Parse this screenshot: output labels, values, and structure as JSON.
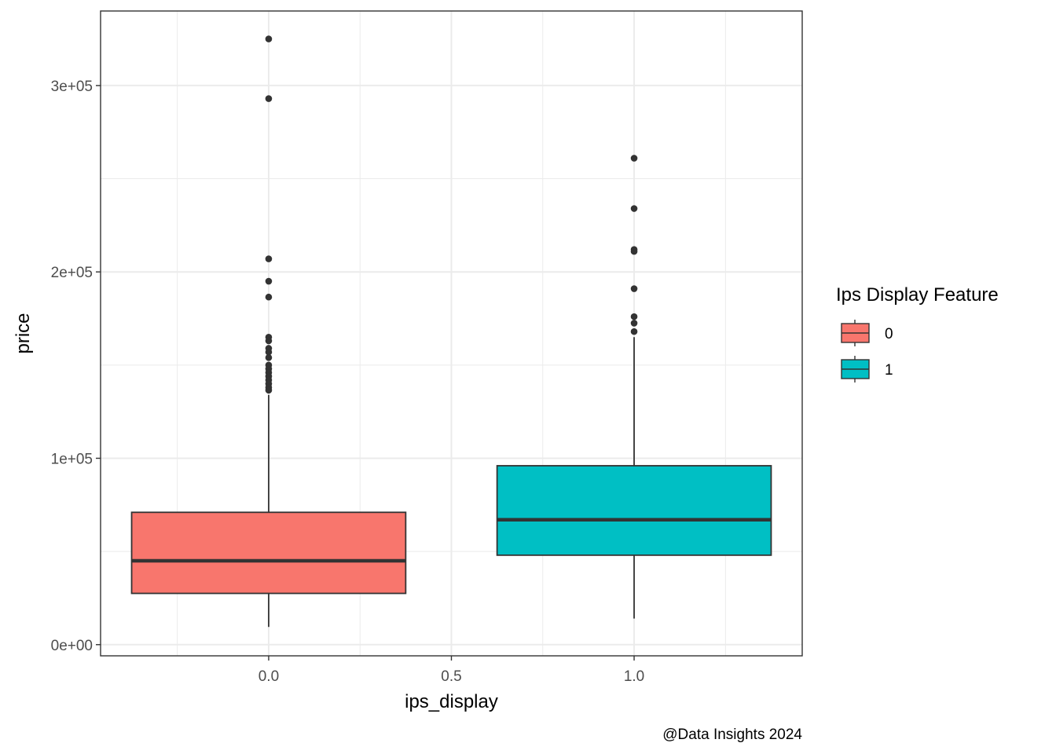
{
  "chart_data": {
    "type": "boxplot",
    "xlabel": "ips_display",
    "ylabel": "price",
    "caption": "@Data Insights 2024",
    "xlim": [
      -0.46,
      1.46
    ],
    "ylim": [
      -6000,
      340000
    ],
    "x_ticks": [
      0,
      0.5,
      1
    ],
    "x_tick_labels": [
      "0.0",
      "0.5",
      "1.0"
    ],
    "y_ticks": [
      0,
      100000,
      200000,
      300000
    ],
    "y_tick_labels": [
      "0e+00",
      "1e+05",
      "2e+05",
      "3e+05"
    ],
    "grid": true,
    "legend": {
      "title": "Ips Display Feature",
      "position": "right",
      "entries": [
        {
          "label": "0",
          "color": "#F8766D"
        },
        {
          "label": "1",
          "color": "#00BFC4"
        }
      ]
    },
    "boxes": [
      {
        "group": "0",
        "x": 0,
        "color": "#F8766D",
        "whisker_low": 9500,
        "q1": 27500,
        "median": 45000,
        "q3": 71000,
        "whisker_high": 134000,
        "outliers": [
          325000,
          293000,
          207000,
          195000,
          186500,
          165000,
          163000,
          159000,
          157000,
          154000,
          150000,
          148000,
          146000,
          144000,
          142000,
          140000,
          138000,
          136500
        ]
      },
      {
        "group": "1",
        "x": 1,
        "color": "#00BFC4",
        "whisker_low": 14000,
        "q1": 48000,
        "median": 67000,
        "q3": 96000,
        "whisker_high": 165000,
        "outliers": [
          261000,
          234000,
          212000,
          211000,
          191000,
          176000,
          172500,
          168000
        ]
      }
    ]
  }
}
